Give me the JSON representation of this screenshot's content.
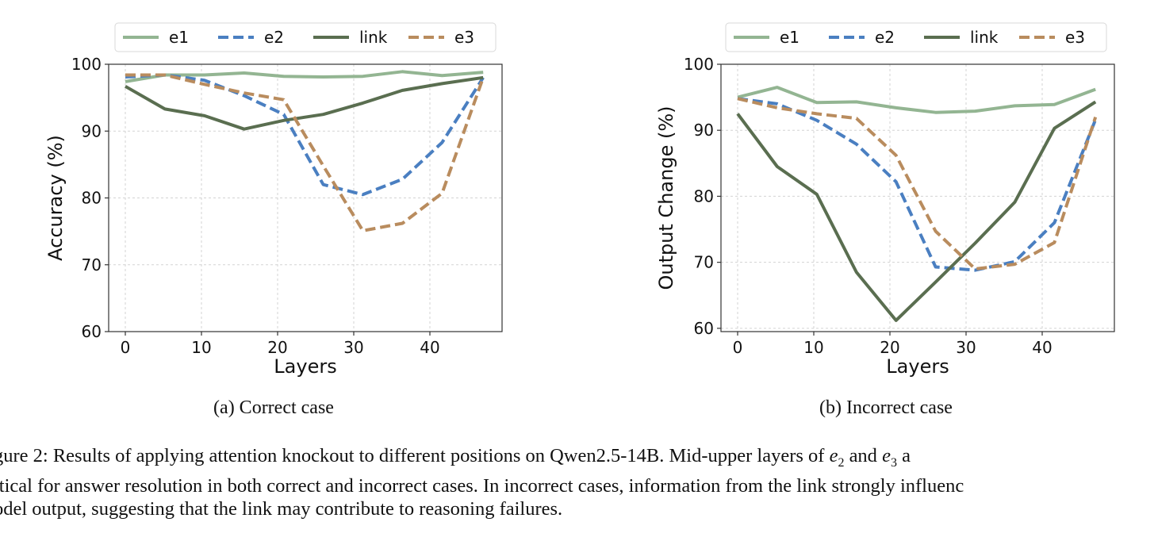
{
  "chart_data": [
    {
      "type": "line",
      "title": "",
      "subcaption": "(a) Correct case",
      "xlabel": "Layers",
      "ylabel": "Accuracy (%)",
      "xlim": [
        -1.5,
        49
      ],
      "ylim": [
        60,
        100
      ],
      "xticks": [
        "0",
        "10",
        "20",
        "30",
        "40"
      ],
      "xtick_values": [
        0,
        10,
        20,
        30,
        40
      ],
      "yticks": [
        "60",
        "70",
        "80",
        "90",
        "100"
      ],
      "ytick_values": [
        60,
        70,
        80,
        90,
        100
      ],
      "grid": true,
      "legend_position": "top-center (outside)",
      "x": [
        0,
        5.2,
        10.4,
        15.6,
        20.8,
        26,
        31.2,
        36.4,
        41.6,
        47
      ],
      "series": [
        {
          "name": "e1",
          "color": "#93b592",
          "style": "solid",
          "values": [
            97.4,
            98.4,
            98.4,
            98.7,
            98.2,
            98.1,
            98.2,
            98.9,
            98.3,
            98.8
          ]
        },
        {
          "name": "e2",
          "color": "#4a7fc1",
          "style": "dashed",
          "values": [
            98.1,
            98.4,
            97.6,
            95.3,
            92.5,
            82.0,
            80.5,
            82.8,
            88.3,
            98.0
          ]
        },
        {
          "name": "link",
          "color": "#5a6e50",
          "style": "solid",
          "values": [
            96.7,
            93.3,
            92.3,
            90.3,
            91.6,
            92.5,
            94.2,
            96.1,
            97.1,
            98.0
          ]
        },
        {
          "name": "e3",
          "color": "#b98c5e",
          "style": "dashed",
          "values": [
            98.4,
            98.4,
            97.0,
            95.7,
            94.7,
            84.8,
            75.1,
            76.2,
            80.7,
            98.0
          ]
        }
      ]
    },
    {
      "type": "line",
      "title": "",
      "subcaption": "(b) Incorrect case",
      "xlabel": "Layers",
      "ylabel": "Output Change (%)",
      "xlim": [
        -1.5,
        49
      ],
      "ylim": [
        59.5,
        100
      ],
      "xticks": [
        "0",
        "10",
        "20",
        "30",
        "40"
      ],
      "xtick_values": [
        0,
        10,
        20,
        30,
        40
      ],
      "yticks": [
        "60",
        "70",
        "80",
        "90",
        "100"
      ],
      "ytick_values": [
        60,
        70,
        80,
        90,
        100
      ],
      "grid": true,
      "legend_position": "top-center (outside)",
      "x": [
        0,
        5.2,
        10.4,
        15.6,
        20.8,
        26,
        31.2,
        36.4,
        41.6,
        47
      ],
      "series": [
        {
          "name": "e1",
          "color": "#93b592",
          "style": "solid",
          "values": [
            95.0,
            96.5,
            94.2,
            94.3,
            93.4,
            92.7,
            92.9,
            93.7,
            93.9,
            96.2
          ]
        },
        {
          "name": "e2",
          "color": "#4a7fc1",
          "style": "dashed",
          "values": [
            94.8,
            94.0,
            91.5,
            87.9,
            82.2,
            69.3,
            68.8,
            70.1,
            76.0,
            91.6
          ]
        },
        {
          "name": "link",
          "color": "#5a6e50",
          "style": "solid",
          "values": [
            92.5,
            84.5,
            80.3,
            68.5,
            61.2,
            67.0,
            72.9,
            79.1,
            90.3,
            94.3
          ]
        },
        {
          "name": "e3",
          "color": "#b98c5e",
          "style": "dashed",
          "values": [
            94.8,
            93.4,
            92.5,
            91.8,
            86.2,
            74.7,
            69.0,
            69.7,
            73.0,
            92.0
          ]
        }
      ]
    }
  ],
  "caption": {
    "line1_a": "gure 2: Results of applying attention knockout to different positions on Qwen2.5-14B. Mid-upper layers of ",
    "e": "e",
    "sub2": "2",
    "and": " and ",
    "sub3": "3",
    "line1_b": " a",
    "line2": "itical for answer resolution in both correct and incorrect cases. In incorrect cases, information from the link strongly influenc",
    "line3": "odel output, suggesting that the link may contribute to reasoning failures."
  }
}
